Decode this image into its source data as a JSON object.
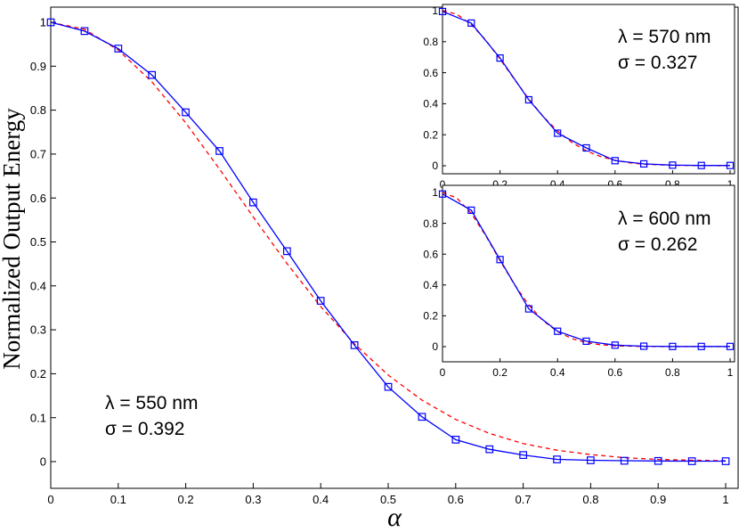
{
  "chart_data": [
    {
      "type": "line",
      "panel": "main",
      "xlabel": "α",
      "ylabel": "Normalized Output Energy",
      "xlim": [
        0,
        1
      ],
      "ylim": [
        -0.05,
        1.02
      ],
      "xticks": [
        0,
        0.1,
        0.2,
        0.3,
        0.4,
        0.5,
        0.6,
        0.7,
        0.8,
        0.9,
        1
      ],
      "yticks": [
        0,
        0.1,
        0.2,
        0.3,
        0.4,
        0.5,
        0.6,
        0.7,
        0.8,
        0.9,
        1
      ],
      "grid": false,
      "annotation": [
        "λ = 550 nm",
        "σ = 0.392"
      ],
      "series": [
        {
          "style": "solid-with-square-markers",
          "color": "#0000ff",
          "x": [
            0,
            0.05,
            0.1,
            0.15,
            0.2,
            0.25,
            0.3,
            0.35,
            0.4,
            0.45,
            0.5,
            0.55,
            0.6,
            0.65,
            0.7,
            0.75,
            0.8,
            0.85,
            0.9,
            0.95,
            1
          ],
          "y": [
            1.0,
            0.98,
            0.94,
            0.88,
            0.795,
            0.707,
            0.59,
            0.479,
            0.366,
            0.265,
            0.17,
            0.102,
            0.05,
            0.028,
            0.015,
            0.005,
            0.003,
            0.002,
            0.0015,
            0.001,
            0.001
          ]
        },
        {
          "style": "dashed",
          "color": "#ff0000",
          "x": [
            0,
            0.05,
            0.1,
            0.15,
            0.2,
            0.25,
            0.3,
            0.35,
            0.4,
            0.45,
            0.5,
            0.55,
            0.6,
            0.65,
            0.7,
            0.75,
            0.8,
            0.85,
            0.9,
            0.95,
            1
          ],
          "y": [
            1.0,
            0.984,
            0.937,
            0.864,
            0.771,
            0.666,
            0.557,
            0.451,
            0.353,
            0.268,
            0.197,
            0.14,
            0.096,
            0.064,
            0.041,
            0.026,
            0.016,
            0.009,
            0.005,
            0.003,
            0.002
          ]
        }
      ]
    },
    {
      "type": "line",
      "panel": "inset-top",
      "xlim": [
        0,
        1
      ],
      "ylim": [
        -0.05,
        1.02
      ],
      "xticks": [
        0,
        0.2,
        0.4,
        0.6,
        0.8,
        1
      ],
      "yticks": [
        0,
        0.2,
        0.4,
        0.6,
        0.8,
        1
      ],
      "grid": false,
      "annotation": [
        "λ = 570 nm",
        "σ = 0.327"
      ],
      "series": [
        {
          "style": "solid-with-square-markers",
          "color": "#0000ff",
          "x": [
            0,
            0.1,
            0.2,
            0.3,
            0.4,
            0.5,
            0.6,
            0.7,
            0.8,
            0.9,
            1
          ],
          "y": [
            0.995,
            0.92,
            0.695,
            0.425,
            0.21,
            0.115,
            0.033,
            0.012,
            0.004,
            0.002,
            0.002
          ]
        },
        {
          "style": "dashed",
          "color": "#ff0000",
          "x": [
            0,
            0.05,
            0.1,
            0.15,
            0.2,
            0.25,
            0.3,
            0.35,
            0.4,
            0.45,
            0.5,
            0.55,
            0.6,
            0.65,
            0.7,
            0.8,
            0.9,
            1
          ],
          "y": [
            1.0,
            0.977,
            0.911,
            0.811,
            0.688,
            0.557,
            0.431,
            0.318,
            0.224,
            0.15,
            0.096,
            0.059,
            0.035,
            0.019,
            0.01,
            0.003,
            0.001,
            0.0
          ]
        }
      ]
    },
    {
      "type": "line",
      "panel": "inset-bottom",
      "xlim": [
        0,
        1
      ],
      "ylim": [
        -0.05,
        1.02
      ],
      "xticks": [
        0,
        0.2,
        0.4,
        0.6,
        0.8,
        1
      ],
      "yticks": [
        0,
        0.2,
        0.4,
        0.6,
        0.8,
        1
      ],
      "grid": false,
      "annotation": [
        "λ = 600 nm",
        "σ = 0.262"
      ],
      "series": [
        {
          "style": "solid-with-square-markers",
          "color": "#0000ff",
          "x": [
            0,
            0.1,
            0.2,
            0.3,
            0.4,
            0.5,
            0.6,
            0.7,
            0.8,
            0.9,
            1
          ],
          "y": [
            0.99,
            0.885,
            0.565,
            0.245,
            0.1,
            0.035,
            0.01,
            0.003,
            0.001,
            0.001,
            0.001
          ]
        },
        {
          "style": "dashed",
          "color": "#ff0000",
          "x": [
            0,
            0.05,
            0.1,
            0.15,
            0.2,
            0.25,
            0.3,
            0.35,
            0.4,
            0.45,
            0.5,
            0.55,
            0.6,
            0.7,
            0.8,
            0.9,
            1
          ],
          "y": [
            1.0,
            0.964,
            0.865,
            0.72,
            0.558,
            0.403,
            0.27,
            0.168,
            0.097,
            0.052,
            0.026,
            0.012,
            0.005,
            0.001,
            0.0,
            0.0,
            0.0
          ]
        }
      ]
    }
  ]
}
